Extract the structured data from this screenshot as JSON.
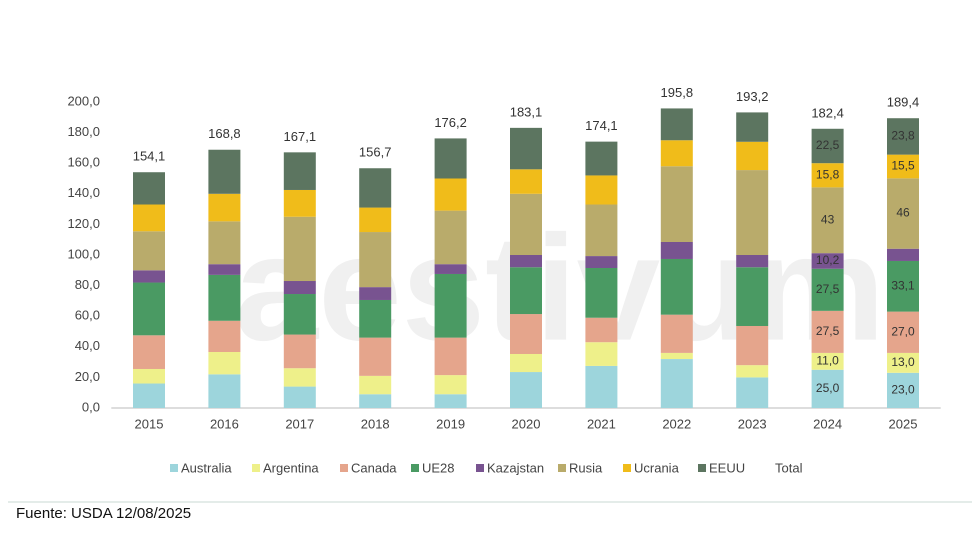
{
  "chart_data": {
    "type": "stacked_bar",
    "categories": [
      "2015",
      "2016",
      "2017",
      "2018",
      "2019",
      "2020",
      "2021",
      "2022",
      "2023",
      "2024",
      "2025"
    ],
    "series": [
      {
        "name": "Australia",
        "color": "#9dd5dc",
        "values": [
          16,
          22,
          14,
          9,
          9,
          23.5,
          27.5,
          32,
          20,
          25,
          23
        ],
        "value_labels": [
          null,
          null,
          null,
          null,
          null,
          null,
          null,
          null,
          null,
          "25,0",
          "23,0"
        ]
      },
      {
        "name": "Argentina",
        "color": "#eef08a",
        "values": [
          9.5,
          14.6,
          12,
          12,
          12.5,
          11.8,
          15.5,
          4,
          8,
          11,
          13
        ],
        "value_labels": [
          null,
          null,
          null,
          null,
          null,
          null,
          null,
          null,
          null,
          "11,0",
          "13,0"
        ]
      },
      {
        "name": "Canada",
        "color": "#e5a58c",
        "values": [
          22,
          20.4,
          22,
          25,
          24.5,
          26.1,
          16,
          25,
          25.6,
          27.5,
          27
        ],
        "value_labels": [
          null,
          null,
          null,
          null,
          null,
          null,
          null,
          null,
          null,
          "27,5",
          "27,0"
        ]
      },
      {
        "name": "UE28",
        "color": "#4a9a63",
        "values": [
          34.5,
          30,
          26.5,
          24.6,
          41.6,
          30.6,
          32.5,
          36.4,
          38.4,
          27.5,
          33.1
        ],
        "value_labels": [
          null,
          null,
          null,
          null,
          null,
          null,
          null,
          null,
          null,
          "27,5",
          "33,1"
        ]
      },
      {
        "name": "Kazajstan",
        "color": "#785390",
        "values": [
          8,
          7,
          8.5,
          8.4,
          6.4,
          8,
          7.8,
          11.1,
          8,
          10.2,
          8
        ],
        "value_labels": [
          null,
          null,
          null,
          null,
          null,
          null,
          null,
          null,
          null,
          "10,2",
          null
        ]
      },
      {
        "name": "Rusia",
        "color": "#b9ab6b",
        "values": [
          25.5,
          28,
          42,
          36,
          35,
          40,
          33.7,
          49.5,
          55.5,
          43,
          46
        ]
      },
      {
        "name": "Ucrania",
        "color": "#f0bc1a",
        "values": [
          17.5,
          18,
          17.5,
          16,
          21,
          16,
          19,
          17,
          18.5,
          15.8,
          15.5
        ],
        "value_labels": [
          null,
          null,
          null,
          null,
          null,
          null,
          null,
          null,
          null,
          "15,8",
          "15,5"
        ]
      },
      {
        "name": "EEUU",
        "color": "#5c7560",
        "values": [
          21.1,
          28.8,
          24.6,
          25.7,
          26.2,
          27.1,
          22.1,
          20.8,
          19.2,
          22.5,
          23.8
        ],
        "value_labels": [
          null,
          null,
          null,
          null,
          null,
          null,
          null,
          null,
          null,
          "22,5",
          "23,8"
        ]
      }
    ],
    "total": {
      "name": "Total",
      "values": [
        154.1,
        168.8,
        167.1,
        156.7,
        176.2,
        183.1,
        174.1,
        195.8,
        193.2,
        182.4,
        189.4
      ],
      "value_labels": [
        "154,1",
        "168,8",
        "167,1",
        "156,7",
        "176,2",
        "183,1",
        "174,1",
        "195,8",
        "193,2",
        "182,4",
        "189,4"
      ]
    },
    "ylim": [
      0,
      200
    ],
    "yticks": [
      {
        "value": 0,
        "label": "0,0"
      },
      {
        "value": 20,
        "label": "20,0"
      },
      {
        "value": 40,
        "label": "40,0"
      },
      {
        "value": 60,
        "label": "60,0"
      },
      {
        "value": 80,
        "label": "80,0"
      },
      {
        "value": 100,
        "label": "100,0"
      },
      {
        "value": 120,
        "label": "120,0"
      },
      {
        "value": 140,
        "label": "140,0"
      },
      {
        "value": 160,
        "label": "160,0"
      },
      {
        "value": 180,
        "label": "180,0"
      },
      {
        "value": 200,
        "label": "200,0"
      }
    ],
    "grid": false,
    "legend": "bottom",
    "watermark": "aestivum",
    "source": "Fuente: USDA 12/08/2025"
  }
}
